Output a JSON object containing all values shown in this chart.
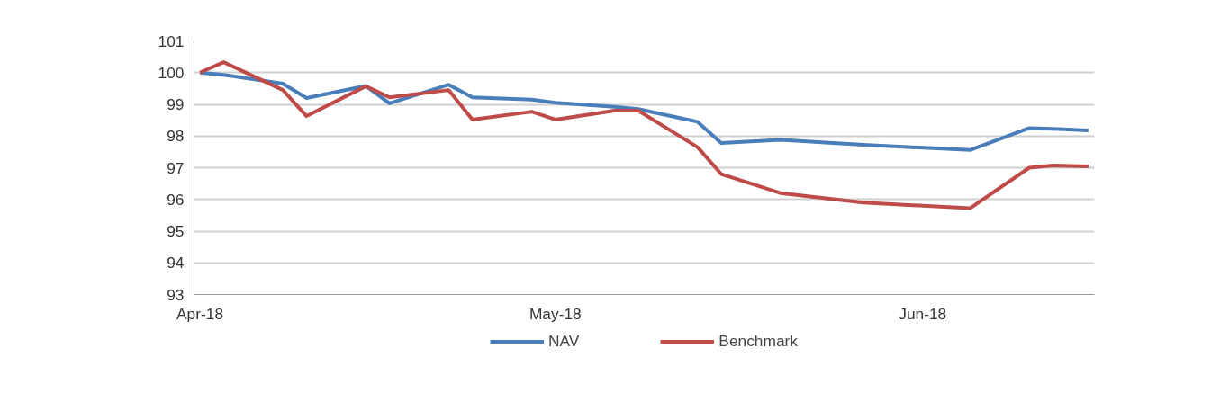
{
  "chart_data": {
    "type": "line",
    "x": [
      "2018-04-01",
      "2018-04-03",
      "2018-04-08",
      "2018-04-10",
      "2018-04-15",
      "2018-04-17",
      "2018-04-22",
      "2018-04-24",
      "2018-04-29",
      "2018-05-01",
      "2018-05-06",
      "2018-05-08",
      "2018-05-13",
      "2018-05-15",
      "2018-05-20",
      "2018-05-27",
      "2018-06-05",
      "2018-06-10",
      "2018-06-12",
      "2018-06-15"
    ],
    "series": [
      {
        "name": "NAV",
        "color": "#4a7ebb",
        "values": [
          100,
          99.93,
          99.65,
          99.2,
          99.58,
          99.03,
          99.62,
          99.22,
          99.15,
          99.05,
          98.92,
          98.85,
          98.45,
          97.78,
          97.88,
          97.72,
          97.56,
          98.25,
          98.23,
          98.18
        ]
      },
      {
        "name": "Benchmark",
        "color": "#be4b48",
        "values": [
          100,
          100.33,
          99.45,
          98.63,
          99.57,
          99.22,
          99.45,
          98.52,
          98.77,
          98.52,
          98.8,
          98.8,
          97.65,
          96.8,
          96.2,
          95.9,
          95.72,
          97.0,
          97.07,
          97.04
        ]
      }
    ],
    "xlim": [
      "2018-03-31T12:00",
      "2018-06-15T12:00"
    ],
    "xticks": [
      {
        "value": "2018-04-01",
        "label": "Apr-18"
      },
      {
        "value": "2018-05-01",
        "label": "May-18"
      },
      {
        "value": "2018-06-01",
        "label": "Jun-18"
      }
    ],
    "ylim": [
      93,
      101
    ],
    "yticks": [
      93,
      94,
      95,
      96,
      97,
      98,
      99,
      100,
      101
    ],
    "grid": "y",
    "legend": "bottom",
    "marker": "none",
    "line_style": "solid"
  }
}
